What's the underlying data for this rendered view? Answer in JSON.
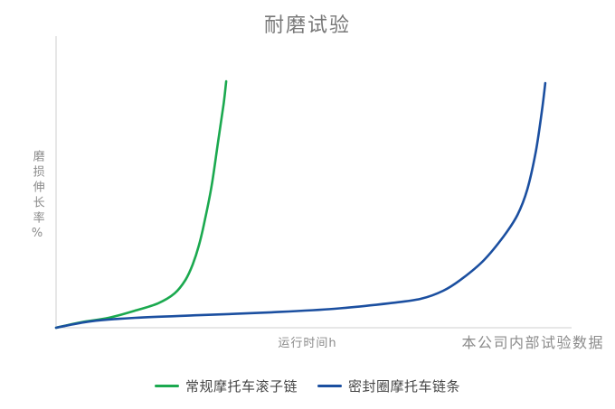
{
  "title": "耐磨试验",
  "colors": {
    "green_series": "#1ba94f",
    "blue_series": "#1b4fa0",
    "axis_line": "#cfcfcf",
    "title_text": "#787878",
    "axis_text": "#8b8b8b",
    "legend_text": "#454545"
  },
  "axes": {
    "y_label": "磨损伸长率%",
    "x_label": "运行时间h",
    "right_annotation": "本公司内部试验数据",
    "ticks_visible": false
  },
  "legend": {
    "items": [
      {
        "label": "常规摩托车滚子链",
        "color": "#1ba94f"
      },
      {
        "label": "密封圈摩托车链条",
        "color": "#1b4fa0"
      }
    ]
  },
  "chart_data": {
    "type": "line",
    "title": "耐磨试验",
    "xlabel": "运行时间h",
    "ylabel": "磨损伸长率%",
    "annotation": "本公司内部试验数据",
    "x_range": [
      0,
      1
    ],
    "y_range": [
      0,
      1
    ],
    "grid": false,
    "legend_position": "bottom",
    "note": "axes unlabeled with ticks; values normalized 0-1 relative to axis extents",
    "series": [
      {
        "name": "常规摩托车滚子链",
        "color": "#1ba94f",
        "points": [
          [
            0,
            0
          ],
          [
            0.049,
            0.019
          ],
          [
            0.102,
            0.034
          ],
          [
            0.154,
            0.059
          ],
          [
            0.198,
            0.084
          ],
          [
            0.23,
            0.118
          ],
          [
            0.251,
            0.164
          ],
          [
            0.265,
            0.217
          ],
          [
            0.277,
            0.282
          ],
          [
            0.289,
            0.372
          ],
          [
            0.302,
            0.489
          ],
          [
            0.314,
            0.635
          ],
          [
            0.325,
            0.768
          ],
          [
            0.33,
            0.845
          ]
        ]
      },
      {
        "name": "密封圈摩托车链条",
        "color": "#1b4fa0",
        "points": [
          [
            0,
            0
          ],
          [
            0.067,
            0.022
          ],
          [
            0.154,
            0.034
          ],
          [
            0.277,
            0.043
          ],
          [
            0.418,
            0.053
          ],
          [
            0.54,
            0.065
          ],
          [
            0.646,
            0.084
          ],
          [
            0.707,
            0.099
          ],
          [
            0.751,
            0.127
          ],
          [
            0.789,
            0.17
          ],
          [
            0.83,
            0.232
          ],
          [
            0.868,
            0.313
          ],
          [
            0.895,
            0.387
          ],
          [
            0.914,
            0.474
          ],
          [
            0.93,
            0.598
          ],
          [
            0.942,
            0.737
          ],
          [
            0.949,
            0.839
          ]
        ]
      }
    ]
  }
}
